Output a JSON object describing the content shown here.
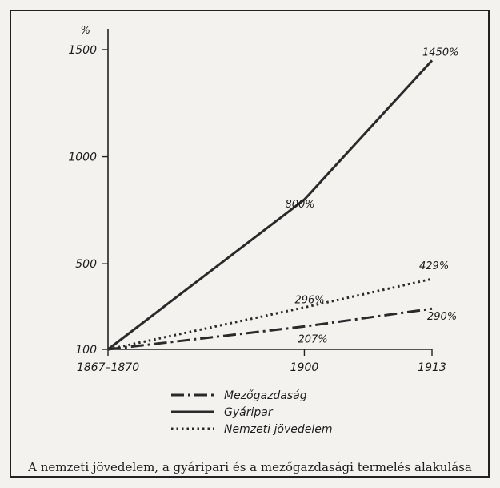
{
  "caption": "A nemzeti jövedelem, a gyáripari és a mezőgazdasági termelés alakulása",
  "chart_data": {
    "type": "line",
    "ylabel": "%",
    "x_positions": [
      0,
      1,
      1.65
    ],
    "x_ticks": [
      "1867–1870",
      "1900",
      "1913"
    ],
    "y_ticks": [
      100,
      500,
      1000,
      1500
    ],
    "ylim": [
      100,
      1600
    ],
    "series": [
      {
        "name": "Mezőgazdaság",
        "style": "dashdot",
        "values": [
          100,
          207,
          290
        ],
        "labels": [
          "",
          "207%",
          "290%"
        ]
      },
      {
        "name": "Gyáripar",
        "style": "solid",
        "values": [
          100,
          800,
          1450
        ],
        "labels": [
          "",
          "800%",
          "1450%"
        ]
      },
      {
        "name": "Nemzeti jövedelem",
        "style": "dotted",
        "values": [
          100,
          296,
          429
        ],
        "labels": [
          "",
          "296%",
          "429%"
        ]
      }
    ],
    "legend_position": "bottom-center",
    "grid": false
  }
}
